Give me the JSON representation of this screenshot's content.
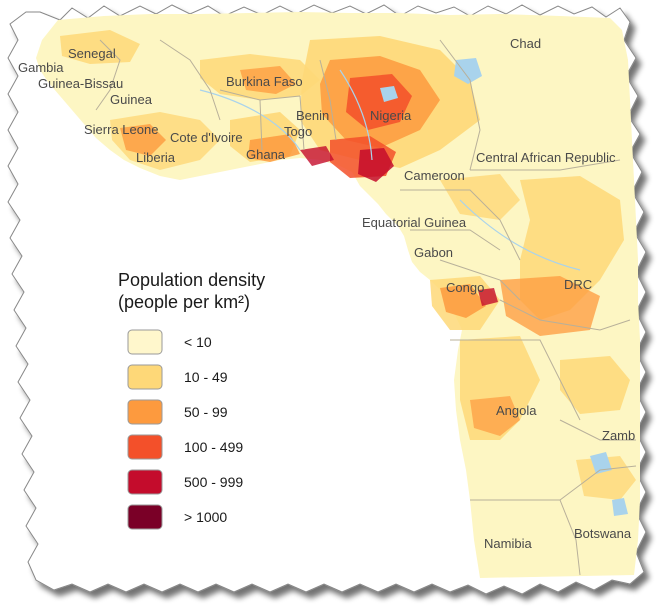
{
  "map": {
    "legend": {
      "title_line1": "Population density",
      "title_line2": "(people per km²)",
      "classes": [
        {
          "label": "< 10",
          "color": "#fff7cc"
        },
        {
          "label": "10 - 49",
          "color": "#fed878"
        },
        {
          "label": "50 - 99",
          "color": "#fd9a3e"
        },
        {
          "label": "100 - 499",
          "color": "#f3502a"
        },
        {
          "label": "500 - 999",
          "color": "#c40c2c"
        },
        {
          "label": "> 1000",
          "color": "#7a0027"
        }
      ]
    },
    "countries": {
      "gambia": "Gambia",
      "senegal": "Senegal",
      "guinea_bissau": "Guinea-Bissau",
      "guinea": "Guinea",
      "sierra_leone": "Sierra Leone",
      "liberia": "Liberia",
      "cote_divoire": "Cote d'Ivoire",
      "ghana": "Ghana",
      "burkina_faso": "Burkina Faso",
      "togo": "Togo",
      "benin": "Benin",
      "nigeria": "Nigeria",
      "chad": "Chad",
      "car": "Central African Republic",
      "cameroon": "Cameroon",
      "equatorial_guinea": "Equatorial Guinea",
      "gabon": "Gabon",
      "congo": "Congo",
      "drc": "DRC",
      "angola": "Angola",
      "zambia": "Zamb",
      "namibia": "Namibia",
      "botswana": "Botswana"
    },
    "colors": {
      "land": "#fdf6c3",
      "ocean": "#ffffff",
      "water": "#a9d3ec",
      "border": "#b8b09a"
    }
  }
}
